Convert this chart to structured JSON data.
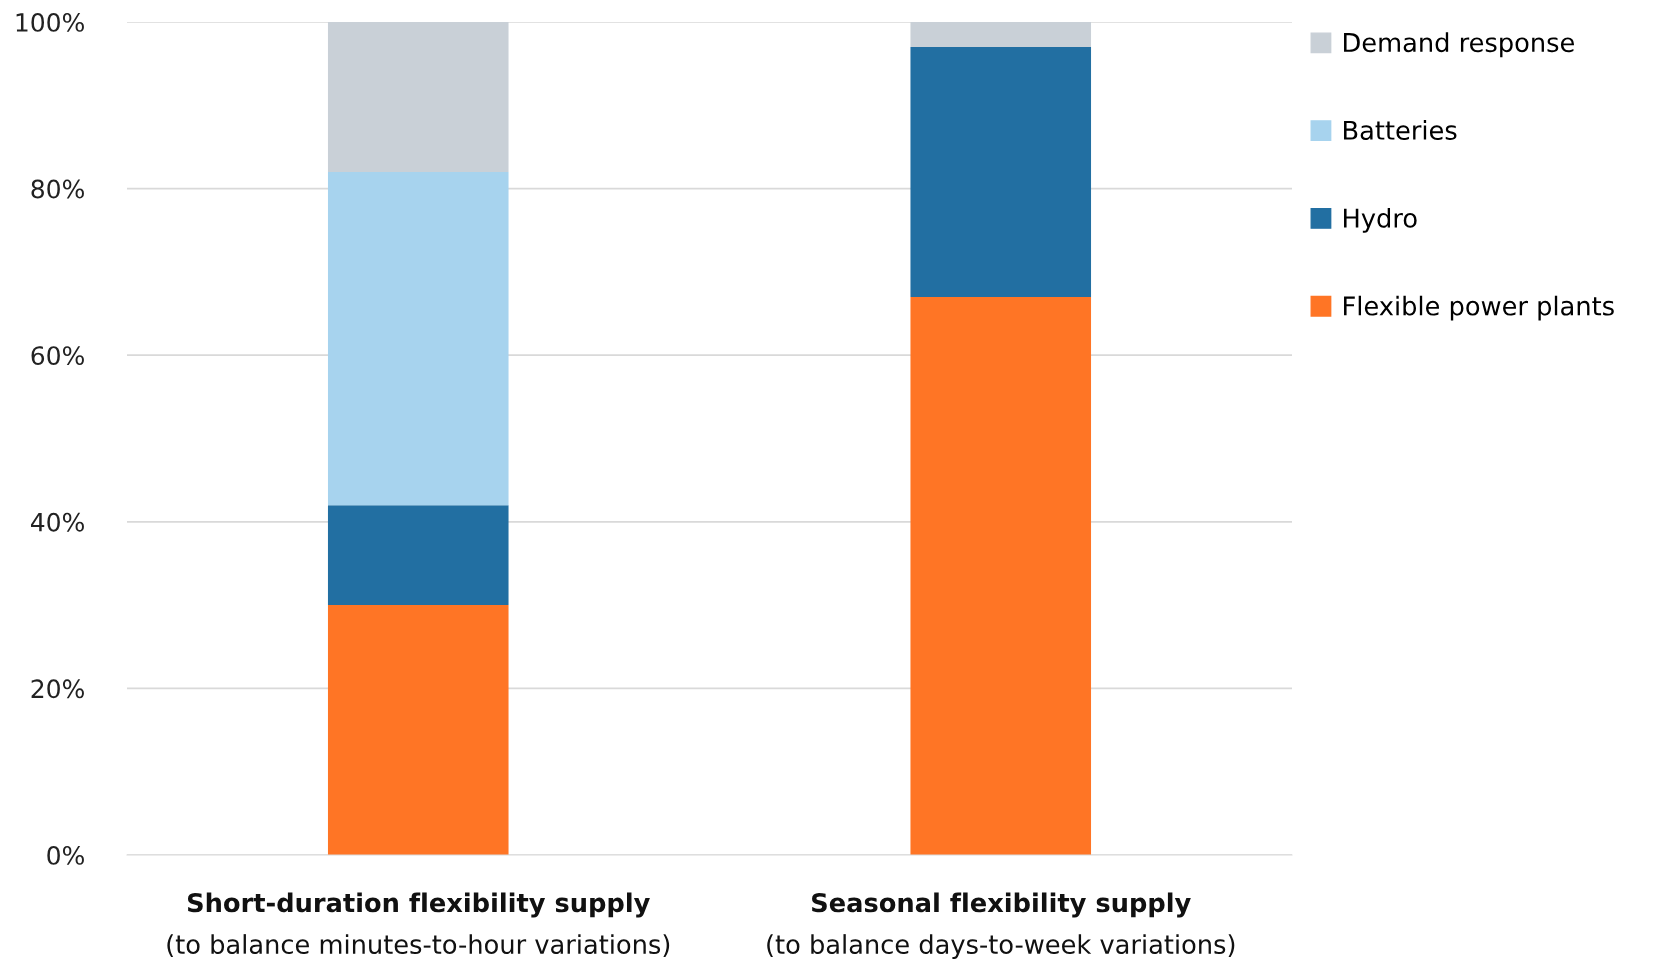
{
  "chart_data": {
    "type": "bar",
    "stacked": true,
    "categories": [
      "Short-duration flexibility supply\n(to balance minutes-to-hour variations)",
      "Seasonal flexibility supply\n(to balance days-to-week variations)"
    ],
    "series": [
      {
        "name": "Flexible power plants",
        "color": "#ff7525",
        "values": [
          30,
          67
        ]
      },
      {
        "name": "Hydro",
        "color": "#226fa2",
        "values": [
          12,
          30
        ]
      },
      {
        "name": "Batteries",
        "color": "#a7d3ee",
        "values": [
          40,
          0
        ]
      },
      {
        "name": "Demand response",
        "color": "#c9d0d7",
        "values": [
          18,
          3
        ]
      }
    ],
    "ylim": [
      0,
      100
    ],
    "yticks": [
      {
        "value": 0,
        "label": "0%"
      },
      {
        "value": 20,
        "label": "20%"
      },
      {
        "value": 40,
        "label": "40%"
      },
      {
        "value": 60,
        "label": "60%"
      },
      {
        "value": 80,
        "label": "80%"
      },
      {
        "value": 100,
        "label": "100%"
      }
    ],
    "grid": "y",
    "legend": "top right"
  }
}
